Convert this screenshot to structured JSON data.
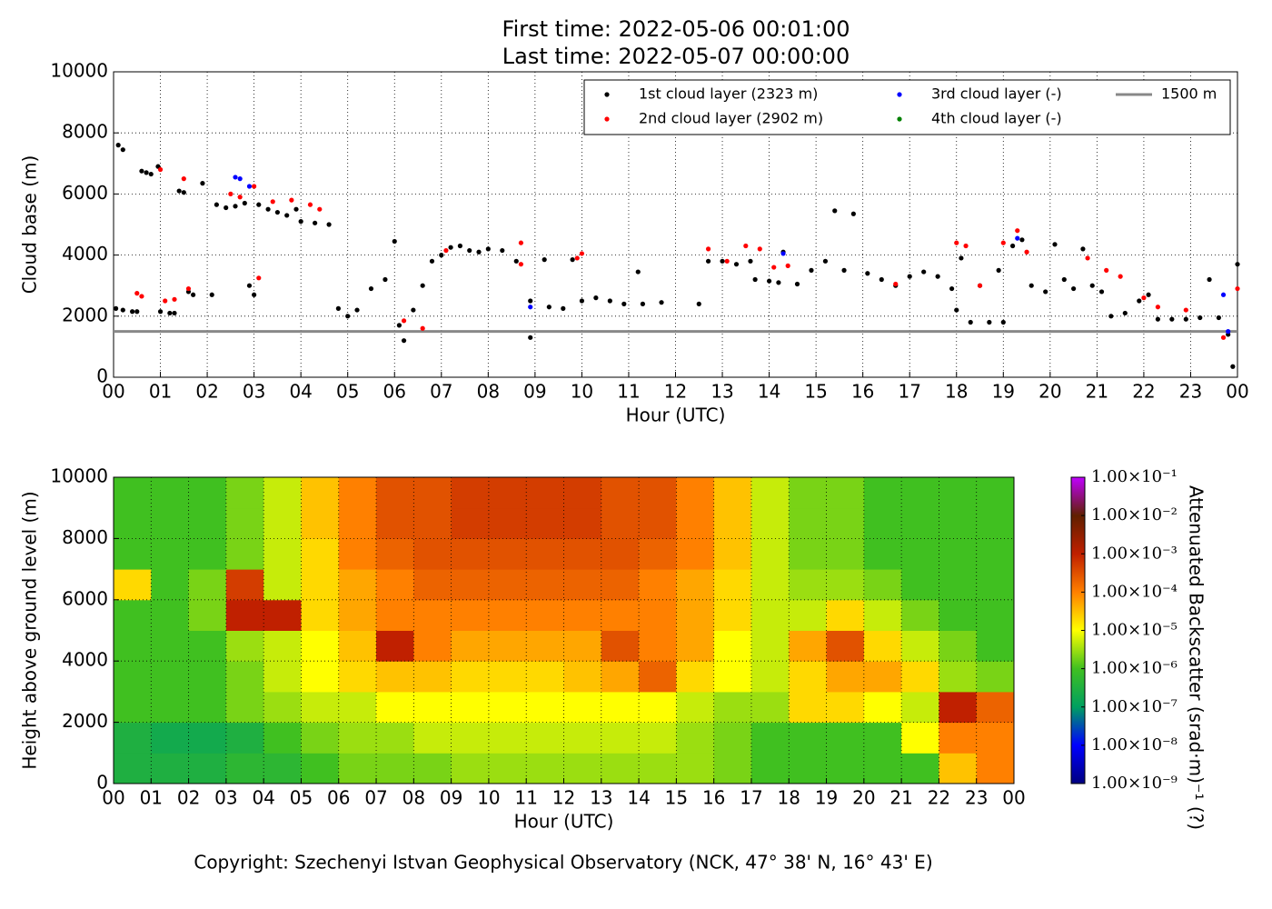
{
  "header": {
    "title_lines": [
      "First time: 2022-05-06 00:01:00",
      "Last time: 2022-05-07 00:00:00"
    ]
  },
  "footer": "Copyright: Szechenyi Istvan Geophysical Observatory (NCK, 47° 38' N, 16° 43' E)",
  "chart_data": [
    {
      "type": "scatter",
      "xlabel": "Hour (UTC)",
      "ylabel": "Cloud base (m)",
      "xlim": [
        0,
        24
      ],
      "xticks": [
        {
          "value": 0,
          "label": "00"
        },
        {
          "value": 1,
          "label": "01"
        },
        {
          "value": 2,
          "label": "02"
        },
        {
          "value": 3,
          "label": "03"
        },
        {
          "value": 4,
          "label": "04"
        },
        {
          "value": 5,
          "label": "05"
        },
        {
          "value": 6,
          "label": "06"
        },
        {
          "value": 7,
          "label": "07"
        },
        {
          "value": 8,
          "label": "08"
        },
        {
          "value": 9,
          "label": "09"
        },
        {
          "value": 10,
          "label": "10"
        },
        {
          "value": 11,
          "label": "11"
        },
        {
          "value": 12,
          "label": "12"
        },
        {
          "value": 13,
          "label": "13"
        },
        {
          "value": 14,
          "label": "14"
        },
        {
          "value": 15,
          "label": "15"
        },
        {
          "value": 16,
          "label": "16"
        },
        {
          "value": 17,
          "label": "17"
        },
        {
          "value": 18,
          "label": "18"
        },
        {
          "value": 19,
          "label": "19"
        },
        {
          "value": 20,
          "label": "20"
        },
        {
          "value": 21,
          "label": "21"
        },
        {
          "value": 22,
          "label": "22"
        },
        {
          "value": 23,
          "label": "23"
        },
        {
          "value": 24,
          "label": "00"
        }
      ],
      "ylim": [
        0,
        10000
      ],
      "yticks": [
        0,
        2000,
        4000,
        6000,
        8000,
        10000
      ],
      "grid": true,
      "legend": "upper right",
      "series": [
        {
          "name": "1st cloud layer (2323 m)",
          "color": "#000000",
          "x": [
            0.1,
            0.2,
            0.05,
            0.2,
            0.4,
            0.5,
            0.6,
            0.7,
            0.8,
            0.95,
            1.0,
            1.2,
            1.3,
            1.4,
            1.5,
            1.6,
            1.7,
            1.9,
            2.1,
            2.2,
            2.4,
            2.6,
            2.8,
            2.9,
            3.0,
            3.1,
            3.3,
            3.5,
            3.7,
            3.9,
            4.0,
            4.3,
            4.6,
            4.8,
            5.0,
            5.2,
            5.5,
            5.8,
            6.0,
            6.1,
            6.2,
            6.4,
            6.6,
            6.8,
            7.0,
            7.2,
            7.4,
            7.6,
            7.8,
            8.0,
            8.3,
            8.6,
            8.9,
            8.9,
            9.2,
            9.3,
            9.6,
            9.8,
            10.0,
            10.3,
            10.6,
            10.9,
            11.2,
            11.3,
            11.7,
            12.5,
            12.7,
            13.0,
            13.3,
            13.6,
            13.7,
            14.0,
            14.2,
            14.3,
            14.6,
            14.9,
            15.2,
            15.4,
            15.6,
            15.8,
            16.1,
            16.4,
            16.7,
            17.0,
            17.3,
            17.6,
            17.9,
            18.0,
            18.1,
            18.3,
            18.5,
            18.7,
            18.9,
            19.0,
            19.2,
            19.4,
            19.6,
            19.9,
            20.1,
            20.3,
            20.5,
            20.7,
            20.9,
            21.1,
            21.3,
            21.6,
            21.9,
            22.1,
            22.3,
            22.6,
            22.9,
            23.2,
            23.4,
            23.6,
            23.8,
            23.9,
            24.0
          ],
          "values": [
            7600,
            7450,
            2250,
            2200,
            2150,
            2150,
            6750,
            6700,
            6650,
            6900,
            2150,
            2100,
            2100,
            6100,
            6050,
            2800,
            2700,
            6350,
            2700,
            5650,
            5550,
            5600,
            5700,
            3000,
            2700,
            5650,
            5500,
            5400,
            5300,
            5500,
            5100,
            5050,
            5000,
            2250,
            2000,
            2200,
            2900,
            3200,
            4450,
            1700,
            1200,
            2200,
            3000,
            3800,
            4000,
            4250,
            4300,
            4150,
            4100,
            4200,
            4150,
            3800,
            2500,
            1300,
            3850,
            2300,
            2250,
            3850,
            2500,
            2600,
            2500,
            2400,
            3450,
            2400,
            2450,
            2400,
            3800,
            3800,
            3700,
            3800,
            3200,
            3150,
            3100,
            4100,
            3050,
            3500,
            3800,
            5450,
            3500,
            5350,
            3400,
            3200,
            3000,
            3300,
            3450,
            3300,
            2900,
            2200,
            3900,
            1800,
            3000,
            1800,
            3500,
            1800,
            4300,
            4500,
            3000,
            2800,
            4350,
            3200,
            2900,
            4200,
            3000,
            2800,
            2000,
            2100,
            2500,
            2700,
            1900,
            1900,
            1900,
            1950,
            3200,
            1950,
            1400,
            350,
            3700
          ]
        },
        {
          "name": "2nd cloud layer (2902 m)",
          "color": "#ff0000",
          "x": [
            0.5,
            0.6,
            1.0,
            1.1,
            1.3,
            1.5,
            1.6,
            2.5,
            2.7,
            3.0,
            3.1,
            3.4,
            3.8,
            4.2,
            4.4,
            6.2,
            6.6,
            7.1,
            8.7,
            8.7,
            9.9,
            10.0,
            12.7,
            13.1,
            13.5,
            13.8,
            14.1,
            14.4,
            16.7,
            18.0,
            18.2,
            18.5,
            19.0,
            19.3,
            19.5,
            20.8,
            21.2,
            21.5,
            22.0,
            22.3,
            22.9,
            23.7,
            24.0
          ],
          "values": [
            2750,
            2650,
            6800,
            2500,
            2550,
            6500,
            2900,
            6000,
            5900,
            6250,
            3250,
            5750,
            5800,
            5650,
            5500,
            1850,
            1600,
            4150,
            4400,
            3700,
            3900,
            4050,
            4200,
            3800,
            4300,
            4200,
            3600,
            3650,
            3050,
            4400,
            4300,
            3000,
            4400,
            4800,
            4100,
            3900,
            3500,
            3300,
            2600,
            2300,
            2200,
            1300,
            2900
          ]
        },
        {
          "name": "3rd cloud layer (-)",
          "color": "#0000ff",
          "x": [
            2.6,
            2.7,
            2.9,
            8.9,
            14.3,
            19.3,
            23.7,
            23.8
          ],
          "values": [
            6550,
            6500,
            6250,
            2300,
            4050,
            4550,
            2700,
            1500
          ]
        },
        {
          "name": "4th cloud layer (-)",
          "color": "#008000",
          "x": [],
          "values": []
        }
      ],
      "hline": {
        "name": "1500 m",
        "value": 1500,
        "color": "#888888"
      }
    },
    {
      "type": "heatmap",
      "xlabel": "Hour (UTC)",
      "ylabel": "Height above ground level (m)",
      "xlim": [
        0,
        24
      ],
      "xticks": [
        {
          "value": 0,
          "label": "00"
        },
        {
          "value": 1,
          "label": "01"
        },
        {
          "value": 2,
          "label": "02"
        },
        {
          "value": 3,
          "label": "03"
        },
        {
          "value": 4,
          "label": "04"
        },
        {
          "value": 5,
          "label": "05"
        },
        {
          "value": 6,
          "label": "06"
        },
        {
          "value": 7,
          "label": "07"
        },
        {
          "value": 8,
          "label": "08"
        },
        {
          "value": 9,
          "label": "09"
        },
        {
          "value": 10,
          "label": "10"
        },
        {
          "value": 11,
          "label": "11"
        },
        {
          "value": 12,
          "label": "12"
        },
        {
          "value": 13,
          "label": "13"
        },
        {
          "value": 14,
          "label": "14"
        },
        {
          "value": 15,
          "label": "15"
        },
        {
          "value": 16,
          "label": "16"
        },
        {
          "value": 17,
          "label": "17"
        },
        {
          "value": 18,
          "label": "18"
        },
        {
          "value": 19,
          "label": "19"
        },
        {
          "value": 20,
          "label": "20"
        },
        {
          "value": 21,
          "label": "21"
        },
        {
          "value": 22,
          "label": "22"
        },
        {
          "value": 23,
          "label": "23"
        },
        {
          "value": 24,
          "label": "00"
        }
      ],
      "ylim": [
        0,
        10000
      ],
      "yticks": [
        0,
        2000,
        4000,
        6000,
        8000,
        10000
      ],
      "grid": true,
      "z": [
        [
          3e-07,
          3e-07,
          3e-07,
          5e-07,
          5e-07,
          1e-06,
          2e-06,
          2e-06,
          2e-06,
          3e-06,
          3e-06,
          3e-06,
          3e-06,
          3e-06,
          3e-06,
          3e-06,
          2e-06,
          1e-06,
          1e-06,
          1e-06,
          1e-06,
          1e-06,
          3e-05,
          0.0001
        ],
        [
          3e-07,
          2e-07,
          2e-07,
          3e-07,
          1e-06,
          2e-06,
          3e-06,
          3e-06,
          5e-06,
          5e-06,
          5e-06,
          5e-06,
          5e-06,
          5e-06,
          5e-06,
          3e-06,
          2e-06,
          1e-06,
          1e-06,
          1e-06,
          1e-06,
          1e-05,
          0.0001,
          0.0001
        ],
        [
          1e-06,
          1e-06,
          1e-06,
          2e-06,
          3e-06,
          5e-06,
          5e-06,
          1e-05,
          1e-05,
          1e-05,
          1e-05,
          1e-05,
          1e-05,
          1e-05,
          1e-05,
          5e-06,
          3e-06,
          3e-06,
          2e-05,
          2e-05,
          1e-05,
          5e-06,
          0.001,
          0.0002
        ],
        [
          1e-06,
          1e-06,
          1e-06,
          2e-06,
          5e-06,
          1e-05,
          2e-05,
          3e-05,
          3e-05,
          2e-05,
          2e-05,
          2e-05,
          3e-05,
          5e-05,
          0.0002,
          2e-05,
          1e-05,
          5e-06,
          2e-05,
          5e-05,
          5e-05,
          2e-05,
          3e-06,
          2e-06
        ],
        [
          1e-06,
          1e-06,
          1e-06,
          3e-06,
          5e-06,
          1e-05,
          3e-05,
          0.001,
          0.0001,
          5e-05,
          5e-05,
          5e-05,
          5e-05,
          0.0003,
          0.0001,
          5e-05,
          1e-05,
          5e-06,
          5e-05,
          0.0003,
          2e-05,
          5e-06,
          2e-06,
          1e-06
        ],
        [
          1e-06,
          1e-06,
          2e-06,
          0.001,
          0.001,
          2e-05,
          5e-05,
          0.0001,
          0.0001,
          0.0001,
          0.0001,
          0.0001,
          0.0001,
          0.0001,
          0.0001,
          5e-05,
          2e-05,
          5e-06,
          5e-06,
          2e-05,
          5e-06,
          2e-06,
          1e-06,
          1e-06
        ],
        [
          2e-05,
          1e-06,
          2e-06,
          0.0005,
          5e-06,
          2e-05,
          5e-05,
          0.0001,
          0.0002,
          0.0002,
          0.0002,
          0.0002,
          0.0002,
          0.0002,
          0.0001,
          5e-05,
          2e-05,
          5e-06,
          3e-06,
          3e-06,
          2e-06,
          1e-06,
          1e-06,
          1e-06
        ],
        [
          1e-06,
          1e-06,
          1e-06,
          2e-06,
          5e-06,
          2e-05,
          0.0001,
          0.0002,
          0.0003,
          0.0003,
          0.0003,
          0.0003,
          0.0003,
          0.0003,
          0.0002,
          0.0001,
          3e-05,
          5e-06,
          2e-06,
          2e-06,
          1e-06,
          1e-06,
          1e-06,
          1e-06
        ],
        [
          1e-06,
          1e-06,
          1e-06,
          2e-06,
          5e-06,
          3e-05,
          0.0001,
          0.0003,
          0.0003,
          0.0005,
          0.0005,
          0.0005,
          0.0005,
          0.0003,
          0.0003,
          0.0001,
          3e-05,
          5e-06,
          2e-06,
          2e-06,
          1e-06,
          1e-06,
          1e-06,
          1e-06
        ],
        [
          1e-06,
          1e-06,
          1e-06,
          2e-06,
          5e-06,
          3e-05,
          0.0001,
          0.0003,
          0.0003,
          0.0005,
          0.0005,
          0.0005,
          0.0005,
          0.0003,
          0.0003,
          0.0001,
          3e-05,
          5e-06,
          2e-06,
          2e-06,
          1e-06,
          1e-06,
          1e-06,
          1e-06
        ]
      ],
      "colorbar": {
        "label": "Attenuated Backscatter (srad·m)⁻¹ (?)",
        "lim": [
          1e-09,
          0.1
        ],
        "log": true,
        "colormap": [
          "#000080",
          "#0000ff",
          "#00a060",
          "#40c020",
          "#ffff00",
          "#ff8000",
          "#c02000",
          "#602000",
          "#c000ff"
        ],
        "ticks": [
          {
            "value": 1e-09,
            "label": "1.00×10⁻⁹"
          },
          {
            "value": 1e-08,
            "label": "1.00×10⁻⁸"
          },
          {
            "value": 1e-07,
            "label": "1.00×10⁻⁷"
          },
          {
            "value": 1e-06,
            "label": "1.00×10⁻⁶"
          },
          {
            "value": 1e-05,
            "label": "1.00×10⁻⁵"
          },
          {
            "value": 0.0001,
            "label": "1.00×10⁻⁴"
          },
          {
            "value": 0.001,
            "label": "1.00×10⁻³"
          },
          {
            "value": 0.01,
            "label": "1.00×10⁻²"
          },
          {
            "value": 0.1,
            "label": "1.00×10⁻¹"
          }
        ]
      }
    }
  ]
}
